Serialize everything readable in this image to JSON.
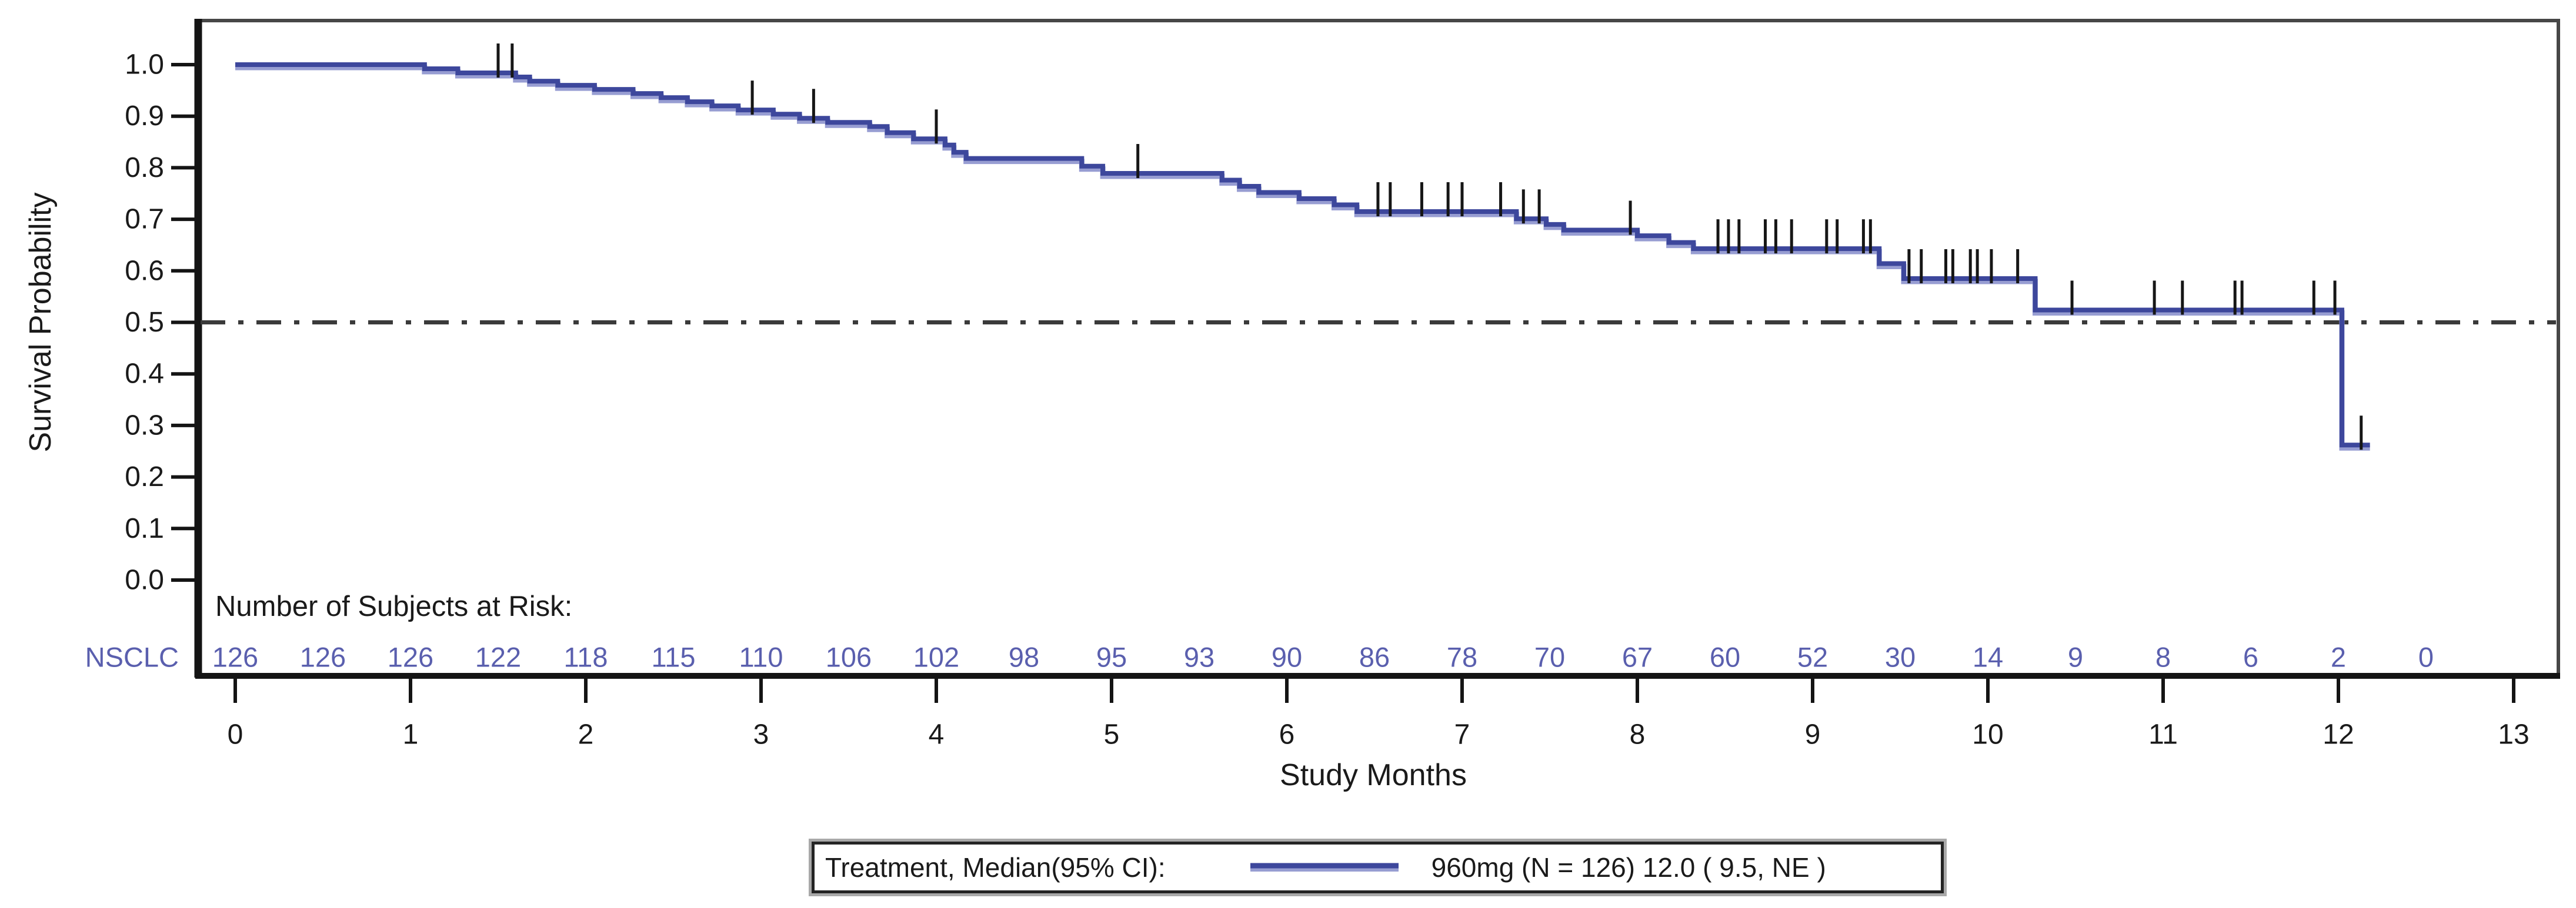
{
  "figure": {
    "background": "#ffffff",
    "at_risk_header": "Number of Subjects at Risk:",
    "legend": {
      "label": "Treatment, Median(95% CI):",
      "series_text": "960mg (N = 126) 12.0 ( 9.5, NE )"
    }
  },
  "chart_data": {
    "type": "line",
    "subtype": "kaplan-meier-step-curve",
    "title": "",
    "xlabel": "Study Months",
    "ylabel": "Survival Probability",
    "xlim": [
      0,
      13
    ],
    "ylim": [
      0.0,
      1.0
    ],
    "x_ticks": [
      0,
      1,
      2,
      3,
      4,
      5,
      6,
      7,
      8,
      9,
      10,
      11,
      12,
      13
    ],
    "y_tick_labels": [
      "1.0",
      "0.9",
      "0.8",
      "0.7",
      "0.6",
      "0.5",
      "0.4",
      "0.3",
      "0.2",
      "0.1",
      "0.0"
    ],
    "grid": false,
    "legend_position": "bottom",
    "reference_line": {
      "y": 0.5,
      "style": "dash-dot",
      "color": "#3a3a3a"
    },
    "colors": {
      "curve": "#3d479c",
      "curve_halo": "#979dd2",
      "risk_text": "#5a5fae",
      "axis": "#141414",
      "frame": "#474747",
      "censor": "#161616",
      "label_text": "#1a1a1a"
    },
    "series": [
      {
        "name": "960mg (N = 126)",
        "median_95ci": "12.0 ( 9.5, NE )",
        "start": [
          0,
          1.0
        ],
        "end_time": 12.18,
        "steps": [
          [
            1.08,
            0.992
          ],
          [
            1.27,
            0.984
          ],
          [
            1.6,
            0.976
          ],
          [
            1.68,
            0.968
          ],
          [
            1.84,
            0.96
          ],
          [
            2.05,
            0.952
          ],
          [
            2.27,
            0.944
          ],
          [
            2.43,
            0.936
          ],
          [
            2.58,
            0.928
          ],
          [
            2.72,
            0.92
          ],
          [
            2.87,
            0.912
          ],
          [
            3.07,
            0.904
          ],
          [
            3.22,
            0.896
          ],
          [
            3.38,
            0.888
          ],
          [
            3.62,
            0.88
          ],
          [
            3.72,
            0.868
          ],
          [
            3.87,
            0.856
          ],
          [
            4.05,
            0.844
          ],
          [
            4.1,
            0.83
          ],
          [
            4.17,
            0.818
          ],
          [
            4.83,
            0.803
          ],
          [
            4.95,
            0.789
          ],
          [
            5.63,
            0.776
          ],
          [
            5.73,
            0.764
          ],
          [
            5.84,
            0.752
          ],
          [
            6.07,
            0.74
          ],
          [
            6.27,
            0.728
          ],
          [
            6.4,
            0.715
          ],
          [
            7.31,
            0.701
          ],
          [
            7.48,
            0.69
          ],
          [
            7.58,
            0.679
          ],
          [
            8.0,
            0.668
          ],
          [
            8.18,
            0.655
          ],
          [
            8.32,
            0.643
          ],
          [
            9.38,
            0.614
          ],
          [
            9.52,
            0.585
          ],
          [
            10.27,
            0.524
          ],
          [
            12.02,
            0.262
          ]
        ],
        "censor_marks": [
          [
            1.5,
            0.984
          ],
          [
            1.58,
            0.984
          ],
          [
            2.95,
            0.912
          ],
          [
            3.3,
            0.896
          ],
          [
            4.0,
            0.856
          ],
          [
            5.15,
            0.789
          ],
          [
            6.52,
            0.715
          ],
          [
            6.59,
            0.715
          ],
          [
            6.77,
            0.715
          ],
          [
            6.92,
            0.715
          ],
          [
            7.0,
            0.715
          ],
          [
            7.22,
            0.715
          ],
          [
            7.35,
            0.701
          ],
          [
            7.44,
            0.701
          ],
          [
            7.96,
            0.679
          ],
          [
            8.46,
            0.643
          ],
          [
            8.52,
            0.643
          ],
          [
            8.58,
            0.643
          ],
          [
            8.73,
            0.643
          ],
          [
            8.79,
            0.643
          ],
          [
            8.88,
            0.643
          ],
          [
            9.08,
            0.643
          ],
          [
            9.14,
            0.643
          ],
          [
            9.29,
            0.643
          ],
          [
            9.33,
            0.643
          ],
          [
            9.55,
            0.585
          ],
          [
            9.62,
            0.585
          ],
          [
            9.76,
            0.585
          ],
          [
            9.8,
            0.585
          ],
          [
            9.9,
            0.585
          ],
          [
            9.94,
            0.585
          ],
          [
            10.02,
            0.585
          ],
          [
            10.17,
            0.585
          ],
          [
            10.48,
            0.524
          ],
          [
            10.95,
            0.524
          ],
          [
            11.11,
            0.524
          ],
          [
            11.41,
            0.524
          ],
          [
            11.45,
            0.524
          ],
          [
            11.86,
            0.524
          ],
          [
            11.98,
            0.524
          ],
          [
            12.13,
            0.262
          ]
        ]
      }
    ],
    "at_risk": {
      "group_label": "NSCLC",
      "times": [
        0,
        0.5,
        1,
        1.5,
        2,
        2.5,
        3,
        3.5,
        4,
        4.5,
        5,
        5.5,
        6,
        6.5,
        7,
        7.5,
        8,
        8.5,
        9,
        9.5,
        10,
        10.5,
        11,
        11.5,
        12,
        12.5
      ],
      "counts": [
        126,
        126,
        126,
        122,
        118,
        115,
        110,
        106,
        102,
        98,
        95,
        93,
        90,
        86,
        78,
        70,
        67,
        60,
        52,
        30,
        14,
        9,
        8,
        6,
        2,
        0
      ]
    }
  }
}
